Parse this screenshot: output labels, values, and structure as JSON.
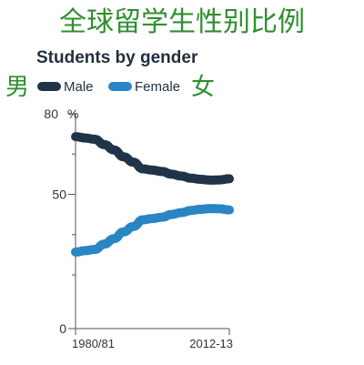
{
  "chart_data": {
    "type": "line",
    "title": "全球留学生性别比例",
    "subtitle": "Students by gender",
    "side_labels": {
      "left": "男",
      "right": "女"
    },
    "y_unit": "%",
    "ylim": [
      0,
      80
    ],
    "yticks": [
      {
        "value": 80,
        "label": "80"
      },
      {
        "value": 50,
        "label": "50"
      },
      {
        "value": 0,
        "label": "0"
      }
    ],
    "xlim": [
      1980,
      2012
    ],
    "xtick_labels": [
      {
        "x": 1980,
        "label": "1980/81"
      },
      {
        "x": 2012,
        "label": "2012-13"
      }
    ],
    "grid": false,
    "legend_position": "top-left",
    "series": [
      {
        "name": "Male",
        "color": "#1f3448",
        "x": [
          1980,
          1982,
          1984,
          1986,
          1988,
          1990,
          1992,
          1994,
          1996,
          1998,
          2000,
          2002,
          2004,
          2006,
          2008,
          2010,
          2012
        ],
        "values": [
          71.5,
          71,
          70.5,
          68.5,
          66.5,
          64,
          62,
          59.5,
          59,
          58.5,
          57.5,
          56.8,
          56,
          55.6,
          55.3,
          55.4,
          55.8
        ]
      },
      {
        "name": "Female",
        "color": "#2a85c5",
        "x": [
          1980,
          1982,
          1984,
          1986,
          1988,
          1990,
          1992,
          1994,
          1996,
          1998,
          2000,
          2002,
          2004,
          2006,
          2008,
          2010,
          2012
        ],
        "values": [
          28.5,
          29,
          29.5,
          31.5,
          33.5,
          36,
          38,
          40.5,
          41,
          41.5,
          42.5,
          43.2,
          44,
          44.4,
          44.7,
          44.6,
          44.2
        ]
      }
    ]
  }
}
